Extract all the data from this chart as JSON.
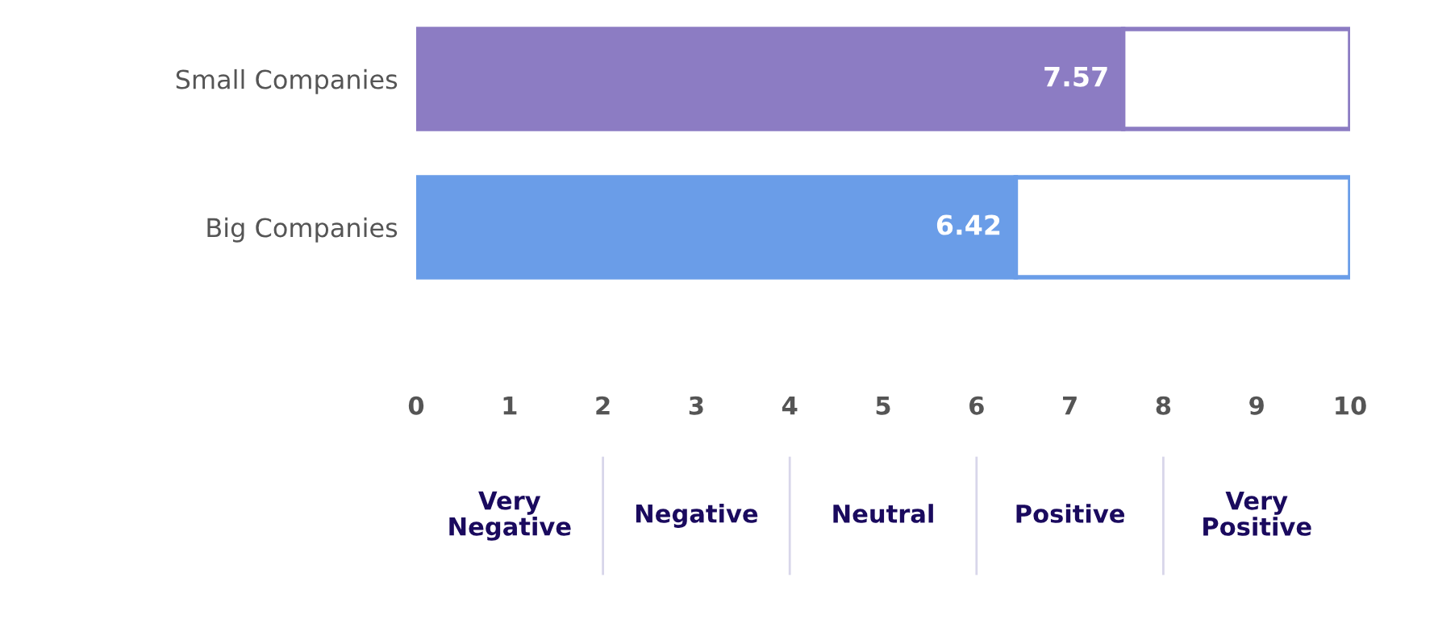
{
  "chart_data": {
    "type": "bar",
    "orientation": "horizontal",
    "stacked": true,
    "categories": [
      "Small Companies",
      "Big Companies"
    ],
    "series": [
      {
        "colors": [
          "#8c7cc3",
          "#6a9de8"
        ],
        "values": [
          7.57,
          6.42
        ],
        "value_labels": [
          "7.57",
          "6.42"
        ]
      },
      {
        "color": "#ffffff",
        "values": [
          2.43,
          3.58
        ],
        "value_labels": [
          null,
          null
        ]
      }
    ],
    "xlim": [
      0,
      10
    ],
    "xticks": [
      0,
      1,
      2,
      3,
      4,
      5,
      6,
      7,
      8,
      9,
      10
    ],
    "grid": false,
    "legend": false,
    "annotations": [
      "Very\nNegative",
      "Negative",
      "Neutral",
      "Positive",
      "Very\nPositive"
    ]
  }
}
